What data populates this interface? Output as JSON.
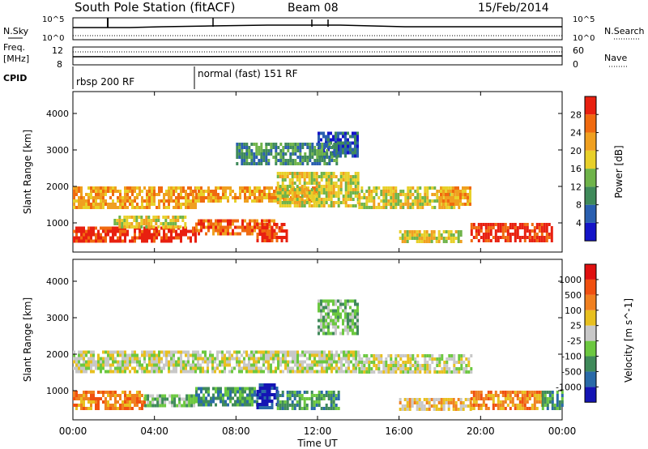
{
  "header": {
    "station": "South Pole Station (fitACF)",
    "beam": "Beam 08",
    "date": "15/Feb/2014"
  },
  "top_panels": {
    "nsky_label": "N.Sky",
    "nsky_ticks": [
      "10^5",
      "10^0"
    ],
    "nsearch_label": "N.Search",
    "nsearch_ticks": [
      "10^5",
      "10^0"
    ],
    "freq_label": "Freq.",
    "freq_unit": "[MHz]",
    "freq_ticks": [
      "12",
      "8"
    ],
    "nave_label": "Nave",
    "nave_ticks": [
      "60",
      "0"
    ],
    "cpid_label": "CPID",
    "cpid_segments": [
      {
        "label": "rbsp 200 RF",
        "start_hour": 0,
        "end_hour": 6
      },
      {
        "label": "normal (fast) 151 RF",
        "start_hour": 6,
        "end_hour": 24
      }
    ]
  },
  "chart_data": [
    {
      "type": "heatmap",
      "panel": "power",
      "ylabel": "Slant Range [km]",
      "xlabel": "",
      "xlim_hours": [
        0,
        24
      ],
      "ylim": [
        200,
        4600
      ],
      "y_ticks": [
        1000,
        2000,
        3000,
        4000
      ],
      "colorbar": {
        "label": "Power [dB]",
        "ticks": [
          "4",
          "8",
          "12",
          "16",
          "20",
          "24",
          "28"
        ],
        "colors": [
          "#1414c8",
          "#2a5fb0",
          "#3f8a5a",
          "#6fb44a",
          "#e8d02a",
          "#f0a020",
          "#f06a10",
          "#e82010"
        ]
      },
      "regions": [
        {
          "t0": 0.0,
          "t1": 6.0,
          "r0": 500,
          "r1": 900,
          "level": 7
        },
        {
          "t0": 0.0,
          "t1": 6.0,
          "r0": 1400,
          "r1": 2000,
          "level": 5
        },
        {
          "t0": 2.0,
          "t1": 5.5,
          "r0": 900,
          "r1": 1200,
          "level": 4
        },
        {
          "t0": 6.0,
          "t1": 12.0,
          "r0": 1600,
          "r1": 2000,
          "level": 5
        },
        {
          "t0": 6.0,
          "t1": 10.0,
          "r0": 700,
          "r1": 1100,
          "level": 6
        },
        {
          "t0": 9.0,
          "t1": 10.5,
          "r0": 500,
          "r1": 1000,
          "level": 7
        },
        {
          "t0": 10.0,
          "t1": 14.0,
          "r0": 1500,
          "r1": 2400,
          "level": 4
        },
        {
          "t0": 14.0,
          "t1": 19.0,
          "r0": 1400,
          "r1": 2000,
          "level": 4
        },
        {
          "t0": 18.0,
          "t1": 19.5,
          "r0": 1500,
          "r1": 2000,
          "level": 5
        },
        {
          "t0": 19.5,
          "t1": 23.5,
          "r0": 500,
          "r1": 1000,
          "level": 7
        },
        {
          "t0": 16.0,
          "t1": 19.0,
          "r0": 500,
          "r1": 800,
          "level": 4
        },
        {
          "t0": 12.0,
          "t1": 14.0,
          "r0": 2800,
          "r1": 3500,
          "level": 1
        },
        {
          "t0": 8.0,
          "t1": 13.0,
          "r0": 2600,
          "r1": 3200,
          "level": 2
        }
      ]
    },
    {
      "type": "heatmap",
      "panel": "velocity",
      "ylabel": "Slant Range [km]",
      "xlabel": "Time UT",
      "xlim_hours": [
        0,
        24
      ],
      "ylim": [
        200,
        4600
      ],
      "y_ticks": [
        1000,
        2000,
        3000,
        4000
      ],
      "x_ticks": [
        "00:00",
        "04:00",
        "08:00",
        "12:00",
        "16:00",
        "20:00",
        "00:00"
      ],
      "colorbar": {
        "label": "Velocity [m s^-1]",
        "ticks": [
          "1000",
          "500",
          "100",
          "25",
          "-25",
          "-100",
          "-500",
          "-1000"
        ],
        "colors": [
          "#1414b4",
          "#2a6aa8",
          "#3f8a5a",
          "#6cc840",
          "#c8c8c8",
          "#e8c020",
          "#f08020",
          "#f05010",
          "#e01010"
        ]
      },
      "regions": [
        {
          "t0": 0.0,
          "t1": 14.0,
          "r0": 1500,
          "r1": 2100,
          "level": 4
        },
        {
          "t0": 14.0,
          "t1": 19.5,
          "r0": 1500,
          "r1": 2000,
          "level": 4
        },
        {
          "t0": 0.0,
          "t1": 3.5,
          "r0": 500,
          "r1": 1000,
          "level": 6
        },
        {
          "t0": 3.5,
          "t1": 6.0,
          "r0": 600,
          "r1": 900,
          "level": 3
        },
        {
          "t0": 6.0,
          "t1": 9.0,
          "r0": 600,
          "r1": 1100,
          "level": 2
        },
        {
          "t0": 9.0,
          "t1": 10.0,
          "r0": 500,
          "r1": 1200,
          "level": 0
        },
        {
          "t0": 10.0,
          "t1": 13.0,
          "r0": 500,
          "r1": 1000,
          "level": 2
        },
        {
          "t0": 16.0,
          "t1": 19.5,
          "r0": 500,
          "r1": 800,
          "level": 5
        },
        {
          "t0": 19.5,
          "t1": 23.0,
          "r0": 500,
          "r1": 1000,
          "level": 6
        },
        {
          "t0": 23.0,
          "t1": 24.0,
          "r0": 500,
          "r1": 1000,
          "level": 2
        },
        {
          "t0": 12.0,
          "t1": 14.0,
          "r0": 2600,
          "r1": 3500,
          "level": 3
        }
      ]
    }
  ]
}
